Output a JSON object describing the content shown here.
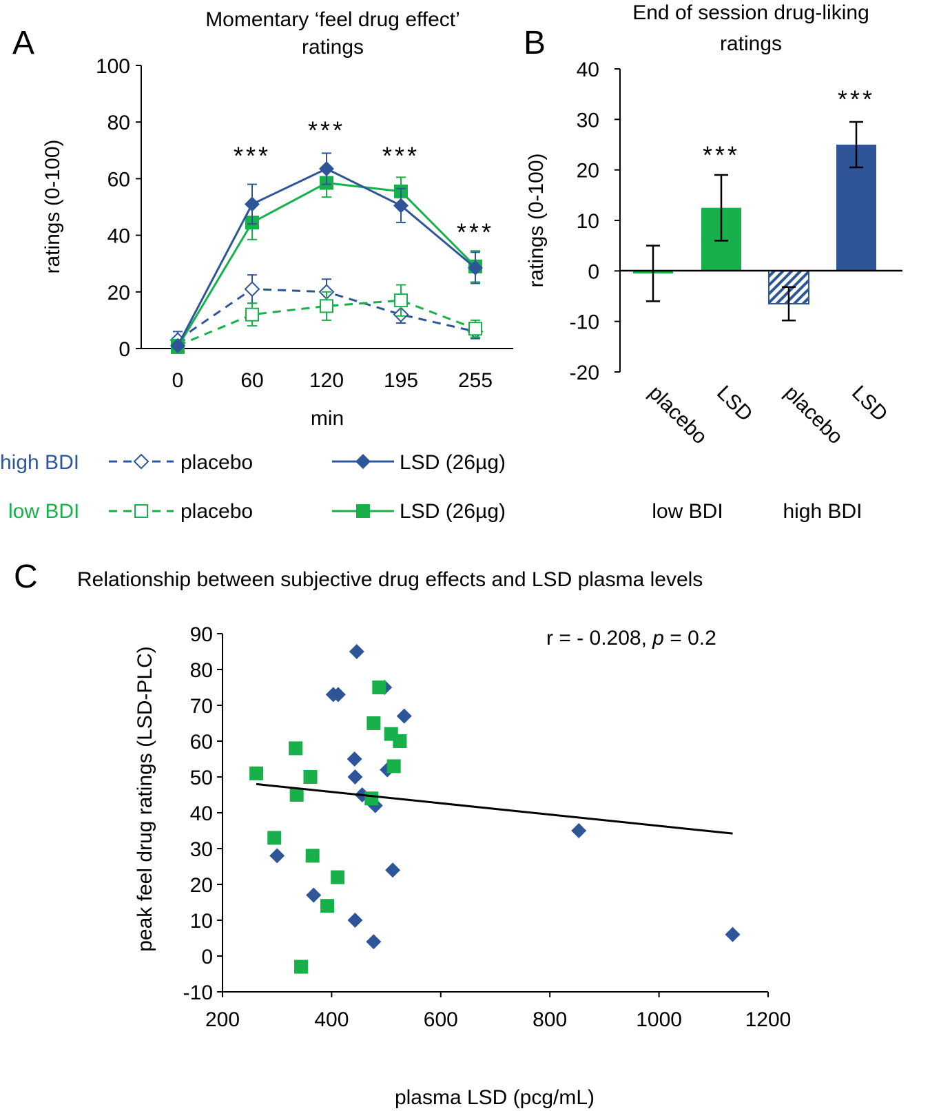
{
  "colors": {
    "blue": "#2E5597",
    "green": "#18B04A",
    "black": "#000000"
  },
  "legend": {
    "high_label": "high BDI",
    "low_label": "low BDI",
    "placebo": "placebo",
    "lsd": "LSD (26µg)"
  },
  "chart_data": [
    {
      "panel": "A",
      "type": "line",
      "title": "Momentary ‘feel drug effect’ ratings",
      "title_lines": [
        "Momentary ‘feel drug effect’",
        "ratings"
      ],
      "xlabel": "min",
      "ylabel": "ratings (0-100)",
      "categories": [
        "0",
        "60",
        "120",
        "195",
        "255"
      ],
      "ylim": [
        0,
        100
      ],
      "yticks": [
        0,
        20,
        40,
        60,
        80,
        100
      ],
      "series": [
        {
          "name": "high BDI placebo",
          "color": "#2E5597",
          "dashed": true,
          "marker": "diamond-open",
          "values": [
            3,
            21,
            20,
            12,
            6
          ],
          "err": [
            3,
            5,
            4.5,
            3,
            2.5
          ]
        },
        {
          "name": "low BDI placebo",
          "color": "#18B04A",
          "dashed": true,
          "marker": "square-open",
          "values": [
            1,
            12,
            15,
            17,
            7
          ],
          "err": [
            1.5,
            4,
            5,
            5.5,
            3
          ]
        },
        {
          "name": "low BDI LSD (26µg)",
          "color": "#18B04A",
          "dashed": false,
          "marker": "square-filled",
          "values": [
            0.5,
            44.5,
            58.5,
            55.5,
            29
          ],
          "err": [
            1,
            6,
            5,
            5,
            5.5
          ]
        },
        {
          "name": "high BDI LSD (26µg)",
          "color": "#2E5597",
          "dashed": false,
          "marker": "diamond-filled",
          "values": [
            1,
            51,
            63.5,
            50.5,
            28.5
          ],
          "err": [
            1,
            7,
            5.5,
            6,
            5.5
          ]
        }
      ],
      "annotations": [
        {
          "category": "60",
          "text": "***",
          "y": 70
        },
        {
          "category": "120",
          "text": "***",
          "y": 79
        },
        {
          "category": "195",
          "text": "***",
          "y": 70
        },
        {
          "category": "255",
          "text": "***",
          "y": 43
        }
      ]
    },
    {
      "panel": "B",
      "type": "bar",
      "title": "End of session drug-liking ratings",
      "title_lines": [
        "End of session drug-liking",
        "ratings"
      ],
      "ylabel": "ratings (0-100)",
      "ylim": [
        -20,
        40
      ],
      "yticks": [
        -20,
        -10,
        0,
        10,
        20,
        30,
        40
      ],
      "categories": [
        "placebo",
        "LSD",
        "placebo",
        "LSD"
      ],
      "groups": [
        "low BDI",
        "high BDI"
      ],
      "values": [
        -0.5,
        12.5,
        -6.5,
        25
      ],
      "err": [
        5.5,
        6.5,
        3.3,
        4.5
      ],
      "bar_styles": [
        "green-solid",
        "green-solid",
        "blue-hatched",
        "blue-solid"
      ],
      "annotations": [
        {
          "bar": 1,
          "text": "***",
          "y": 24
        },
        {
          "bar": 3,
          "text": "***",
          "y": 35
        }
      ]
    },
    {
      "panel": "C",
      "type": "scatter",
      "title": "Relationship between subjective drug effects and LSD plasma levels",
      "xlabel": "plasma LSD (pcg/mL)",
      "ylabel": "peak feel drug ratings (LSD-PLC)",
      "xlim": [
        200,
        1200
      ],
      "ylim": [
        -10,
        90
      ],
      "xticks": [
        200,
        400,
        600,
        800,
        1000,
        1200
      ],
      "yticks": [
        -10,
        0,
        10,
        20,
        30,
        40,
        50,
        60,
        70,
        80,
        90
      ],
      "stat_prefix": "r = - 0.208, ",
      "stat_p": "p",
      "stat_suffix": " = 0.2",
      "trendline": {
        "x": [
          262,
          1135
        ],
        "y": [
          48,
          34.2
        ]
      },
      "series": [
        {
          "name": "high BDI",
          "marker": "diamond",
          "color": "#2E5597",
          "x": [
            446,
            403,
            412,
            497,
            533,
            442,
            443,
            502,
            456,
            480,
            300,
            367,
            443,
            477,
            512,
            853,
            1135
          ],
          "y": [
            85,
            73,
            73,
            75,
            67,
            55,
            50,
            52,
            45,
            42,
            28,
            17,
            10,
            4,
            24,
            35,
            6
          ]
        },
        {
          "name": "low BDI",
          "marker": "square",
          "color": "#18B04A",
          "x": [
            262,
            334,
            361,
            336,
            295,
            365,
            411,
            392,
            344,
            487,
            477,
            509,
            525,
            514,
            473
          ],
          "y": [
            51,
            58,
            50,
            45,
            33,
            28,
            22,
            14,
            -3,
            75,
            65,
            62,
            60,
            53,
            44
          ]
        }
      ]
    }
  ],
  "panel_labels": [
    "A",
    "B",
    "C"
  ]
}
